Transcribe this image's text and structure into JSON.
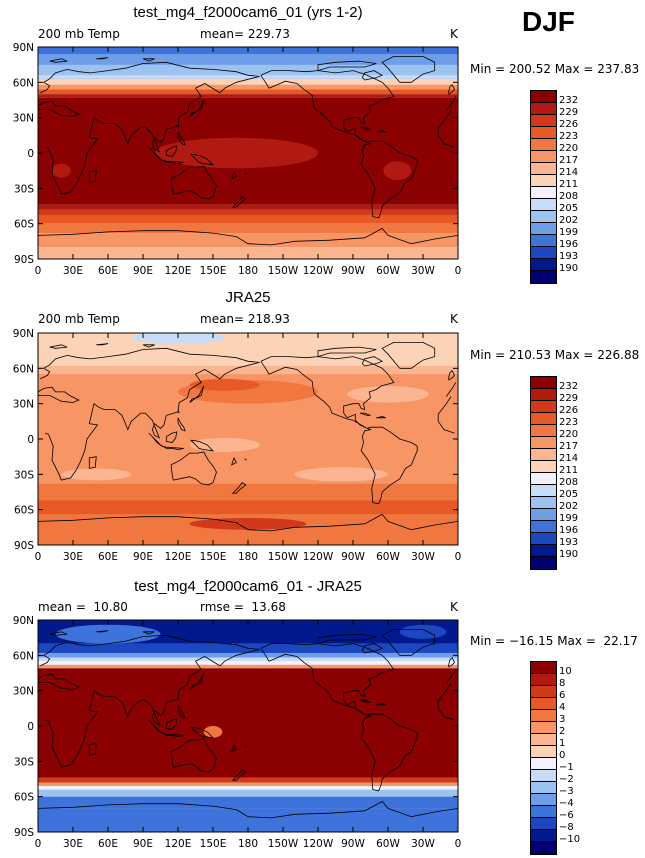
{
  "season": "DJF",
  "panels": [
    {
      "title": "test_mg4_f2000cam6_01 (yrs 1-2)",
      "left_label": "200 mb Temp",
      "center_label": "mean= 229.73",
      "unit": "K",
      "minmax": "Min = 200.52 Max = 237.83",
      "colorbar_labels": [
        "232",
        "229",
        "226",
        "223",
        "220",
        "217",
        "214",
        "211",
        "208",
        "205",
        "202",
        "199",
        "196",
        "193",
        "190"
      ],
      "colors": [
        "#8b0000",
        "#b01a10",
        "#d03a1a",
        "#e85a25",
        "#f07840",
        "#f89565",
        "#fbb590",
        "#fdd3b8",
        "#f2f2ff",
        "#c8dcf8",
        "#9cc2f2",
        "#6f9ee8",
        "#3f73dc",
        "#1b47c0",
        "#001a8e",
        "#000070"
      ]
    },
    {
      "title": "JRA25",
      "left_label": "200 mb Temp",
      "center_label": "mean= 218.93",
      "unit": "K",
      "minmax": "Min = 210.53 Max = 226.88",
      "colorbar_labels": [
        "232",
        "229",
        "226",
        "223",
        "220",
        "217",
        "214",
        "211",
        "208",
        "205",
        "202",
        "199",
        "196",
        "193",
        "190"
      ],
      "colors": [
        "#8b0000",
        "#b01a10",
        "#d03a1a",
        "#e85a25",
        "#f07840",
        "#f89565",
        "#fbb590",
        "#fdd3b8",
        "#f2f2ff",
        "#c8dcf8",
        "#9cc2f2",
        "#6f9ee8",
        "#3f73dc",
        "#1b47c0",
        "#001a8e",
        "#000070"
      ]
    },
    {
      "title": "test_mg4_f2000cam6_01 - JRA25",
      "left_label": "mean =  10.80",
      "center_label": "rmse =  13.68",
      "unit": "K",
      "minmax": "Min = −16.15 Max =  22.17",
      "colorbar_labels": [
        "10",
        "8",
        "6",
        "4",
        "3",
        "2",
        "1",
        "0",
        "−1",
        "−2",
        "−3",
        "−4",
        "−6",
        "−8",
        "−10"
      ],
      "colors": [
        "#8b0000",
        "#b01a10",
        "#d03a1a",
        "#e85a25",
        "#f07840",
        "#f89565",
        "#fbb590",
        "#fdd3b8",
        "#f2f2ff",
        "#c8dcf8",
        "#9cc2f2",
        "#6f9ee8",
        "#3f73dc",
        "#1b47c0",
        "#001a8e",
        "#000070"
      ]
    }
  ],
  "lat_labels": [
    "90N",
    "60N",
    "30N",
    "0",
    "30S",
    "60S",
    "90S"
  ],
  "lon_labels": [
    "0",
    "30E",
    "60E",
    "90E",
    "120E",
    "150E",
    "180",
    "150W",
    "120W",
    "90W",
    "60W",
    "30W",
    "0"
  ],
  "maps": [
    {
      "bands": [
        {
          "lat": [
            60,
            90
          ],
          "color": "#3f73dc"
        },
        {
          "lat": [
            75,
            84
          ],
          "color": "#6f9ee8"
        },
        {
          "lat": [
            65,
            75
          ],
          "color": "#9cc2f2"
        },
        {
          "lat": [
            63,
            66
          ],
          "color": "#c8dcf8"
        },
        {
          "lat": [
            58,
            63
          ],
          "color": "#fdd3b8"
        },
        {
          "lat": [
            54,
            58
          ],
          "color": "#f89565"
        },
        {
          "lat": [
            50,
            54
          ],
          "color": "#e85a25"
        },
        {
          "lat": [
            47,
            50
          ],
          "color": "#b01a10"
        },
        {
          "lat": [
            -44,
            47
          ],
          "color": "#8b0000"
        },
        {
          "lat": [
            -48,
            -44
          ],
          "color": "#b01a10"
        },
        {
          "lat": [
            -53,
            -48
          ],
          "color": "#d03a1a"
        },
        {
          "lat": [
            -60,
            -53
          ],
          "color": "#e85a25"
        },
        {
          "lat": [
            -68,
            -60
          ],
          "color": "#f07840"
        },
        {
          "lat": [
            -80,
            -68
          ],
          "color": "#f89565"
        },
        {
          "lat": [
            -90,
            -80
          ],
          "color": "#fbb590"
        }
      ],
      "blobs": [
        {
          "lon": 170,
          "lat": 0,
          "rx": 70,
          "ry": 13,
          "color": "#b01a10"
        },
        {
          "lon": 308,
          "lat": -15,
          "rx": 12,
          "ry": 8,
          "color": "#b01a10"
        },
        {
          "lon": 20,
          "lat": -15,
          "rx": 8,
          "ry": 6,
          "color": "#b01a10"
        }
      ]
    },
    {
      "bands": [
        {
          "lat": [
            -90,
            90
          ],
          "color": "#f89565"
        },
        {
          "lat": [
            62,
            90
          ],
          "color": "#fdd3b8"
        },
        {
          "lat": [
            55,
            62
          ],
          "color": "#fbb590"
        },
        {
          "lat": [
            -52,
            -38
          ],
          "color": "#f07840"
        },
        {
          "lat": [
            -64,
            -52
          ],
          "color": "#e85a25"
        },
        {
          "lat": [
            -90,
            -64
          ],
          "color": "#f07840"
        }
      ],
      "blobs": [
        {
          "lon": 120,
          "lat": 86,
          "rx": 40,
          "ry": 5,
          "color": "#c8dcf8"
        },
        {
          "lon": 180,
          "lat": 40,
          "rx": 60,
          "ry": 10,
          "color": "#f07840"
        },
        {
          "lon": 160,
          "lat": 46,
          "rx": 30,
          "ry": 5,
          "color": "#e85a25"
        },
        {
          "lon": 300,
          "lat": 38,
          "rx": 35,
          "ry": 7,
          "color": "#fbb590"
        },
        {
          "lon": 160,
          "lat": -5,
          "rx": 30,
          "ry": 6,
          "color": "#fbb590"
        },
        {
          "lon": 260,
          "lat": -30,
          "rx": 40,
          "ry": 6,
          "color": "#fbb590"
        },
        {
          "lon": 50,
          "lat": -30,
          "rx": 30,
          "ry": 5,
          "color": "#fbb590"
        },
        {
          "lon": 180,
          "lat": -72,
          "rx": 50,
          "ry": 5,
          "color": "#d03a1a"
        }
      ]
    },
    {
      "bands": [
        {
          "lat": [
            70,
            90
          ],
          "color": "#001a8e"
        },
        {
          "lat": [
            62,
            70
          ],
          "color": "#1b47c0"
        },
        {
          "lat": [
            58,
            62
          ],
          "color": "#6f9ee8"
        },
        {
          "lat": [
            55,
            58
          ],
          "color": "#c8dcf8"
        },
        {
          "lat": [
            52,
            55
          ],
          "color": "#f2f2ff"
        },
        {
          "lat": [
            49,
            52
          ],
          "color": "#f89565"
        },
        {
          "lat": [
            -44,
            49
          ],
          "color": "#8b0000"
        },
        {
          "lat": [
            -48,
            -44
          ],
          "color": "#d03a1a"
        },
        {
          "lat": [
            -51,
            -48
          ],
          "color": "#f89565"
        },
        {
          "lat": [
            -54,
            -51
          ],
          "color": "#f2f2ff"
        },
        {
          "lat": [
            -60,
            -54
          ],
          "color": "#9cc2f2"
        },
        {
          "lat": [
            -70,
            -60
          ],
          "color": "#3f73dc"
        },
        {
          "lat": [
            -90,
            -70
          ],
          "color": "#3f73dc"
        }
      ],
      "blobs": [
        {
          "lon": 60,
          "lat": 78,
          "rx": 45,
          "ry": 8,
          "color": "#3f73dc"
        },
        {
          "lon": 150,
          "lat": -5,
          "rx": 8,
          "ry": 5,
          "color": "#f07840"
        },
        {
          "lon": 330,
          "lat": 80,
          "rx": 20,
          "ry": 6,
          "color": "#1b47c0"
        }
      ]
    }
  ]
}
